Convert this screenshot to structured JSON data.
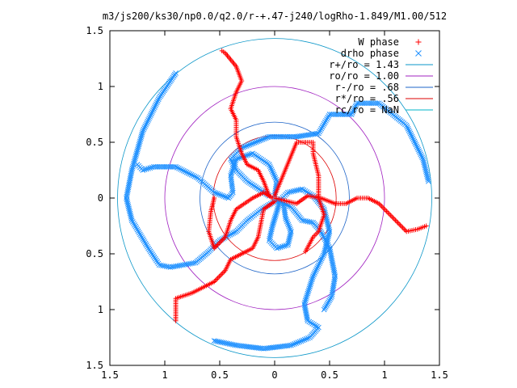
{
  "chart_data": {
    "type": "scatter",
    "title": "m3/js200/ks30/np0.0/q2.0/r-+.47-j240/logRho-1.849/M1.00/512",
    "xlabel": "",
    "ylabel": "",
    "xlim": [
      -1.5,
      1.5
    ],
    "ylim": [
      -1.5,
      1.5
    ],
    "x_tick_values": [
      -1.5,
      -1,
      -0.5,
      0,
      0.5,
      1,
      1.5
    ],
    "x_tick_labels": [
      "1.5",
      "1",
      "0.5",
      "0",
      "0.5",
      "1",
      "1.5"
    ],
    "y_tick_values": [
      1.5,
      1,
      0.5,
      0,
      -0.5,
      -1,
      -1.5
    ],
    "y_tick_labels": [
      "1.5",
      "1",
      "0.5",
      "0",
      "0.5",
      "1",
      "1.5"
    ],
    "grid": false,
    "legend_position": "top-right",
    "legend": [
      {
        "label": "W phase",
        "kind": "marker",
        "marker": "+",
        "color": "#ff0000"
      },
      {
        "label": "drho phase",
        "kind": "marker",
        "marker": "x",
        "color": "#1e90ff"
      },
      {
        "label": "r+/ro = 1.43",
        "kind": "line",
        "color": "#0a96c8"
      },
      {
        "label": "ro/ro = 1.00",
        "kind": "line",
        "color": "#a020c0"
      },
      {
        "label": "r-/ro = .68",
        "kind": "line",
        "color": "#1e64c8"
      },
      {
        "label": "r*/ro = .56",
        "kind": "line",
        "color": "#dd0000"
      },
      {
        "label": "rc/ro = NaN",
        "kind": "line",
        "color": "#00b4c8"
      }
    ],
    "circles": [
      {
        "name": "r+/ro = 1.43",
        "r": 1.43,
        "color": "#0a96c8"
      },
      {
        "name": "ro/ro = 1.00",
        "r": 1.0,
        "color": "#a020c0"
      },
      {
        "name": "r-/ro = .68",
        "r": 0.68,
        "color": "#1e64c8"
      },
      {
        "name": "r*/ro = .56",
        "r": 0.56,
        "color": "#dd0000"
      }
    ],
    "series": [
      {
        "name": "drho phase",
        "marker": "x",
        "color": "#1e90ff",
        "arms": [
          [
            [
              0.08,
              -0.05
            ],
            [
              0.1,
              -0.18
            ],
            [
              0.15,
              -0.3
            ],
            [
              0.12,
              -0.42
            ],
            [
              0.02,
              -0.45
            ],
            [
              -0.05,
              -0.38
            ],
            [
              -0.02,
              -0.25
            ],
            [
              0.02,
              -0.12
            ],
            [
              0.05,
              -0.02
            ]
          ],
          [
            [
              0.05,
              -0.02
            ],
            [
              0.12,
              0.05
            ],
            [
              0.25,
              0.08
            ],
            [
              0.35,
              0.02
            ],
            [
              0.45,
              -0.1
            ],
            [
              0.5,
              -0.3
            ],
            [
              0.45,
              -0.5
            ],
            [
              0.35,
              -0.7
            ],
            [
              0.27,
              -0.95
            ],
            [
              0.3,
              -1.1
            ],
            [
              0.4,
              -1.16
            ],
            [
              0.32,
              -1.25
            ],
            [
              0.15,
              -1.32
            ],
            [
              -0.1,
              -1.35
            ],
            [
              -0.35,
              -1.32
            ],
            [
              -0.55,
              -1.28
            ]
          ],
          [
            [
              0.02,
              -0.02
            ],
            [
              -0.12,
              -0.1
            ],
            [
              -0.25,
              -0.2
            ],
            [
              -0.35,
              -0.3
            ],
            [
              -0.5,
              -0.38
            ],
            [
              -0.6,
              -0.48
            ],
            [
              -0.72,
              -0.58
            ],
            [
              -0.95,
              -0.62
            ],
            [
              -1.05,
              -0.6
            ],
            [
              -1.15,
              -0.45
            ],
            [
              -1.3,
              -0.2
            ],
            [
              -1.35,
              0.0
            ],
            [
              -1.3,
              0.25
            ],
            [
              -1.2,
              0.6
            ],
            [
              -1.05,
              0.9
            ],
            [
              -0.9,
              1.12
            ]
          ],
          [
            [
              0.0,
              0.02
            ],
            [
              0.02,
              0.15
            ],
            [
              -0.05,
              0.3
            ],
            [
              -0.2,
              0.4
            ],
            [
              -0.35,
              0.35
            ],
            [
              -0.4,
              0.2
            ],
            [
              -0.38,
              0.05
            ],
            [
              -0.42,
              0.0
            ],
            [
              -0.55,
              0.05
            ],
            [
              -0.7,
              0.18
            ],
            [
              -0.9,
              0.28
            ],
            [
              -1.1,
              0.28
            ],
            [
              -1.2,
              0.25
            ],
            [
              -1.25,
              0.3
            ]
          ],
          [
            [
              -0.05,
              0.02
            ],
            [
              -0.25,
              0.15
            ],
            [
              -0.35,
              0.25
            ],
            [
              -0.4,
              0.35
            ],
            [
              -0.3,
              0.45
            ],
            [
              -0.05,
              0.55
            ],
            [
              0.2,
              0.55
            ],
            [
              0.4,
              0.58
            ],
            [
              0.5,
              0.75
            ],
            [
              0.6,
              0.75
            ],
            [
              0.7,
              0.75
            ],
            [
              0.75,
              0.85
            ],
            [
              0.95,
              0.85
            ],
            [
              1.2,
              0.65
            ],
            [
              1.35,
              0.35
            ],
            [
              1.4,
              0.15
            ]
          ],
          [
            [
              0.02,
              -0.02
            ],
            [
              0.15,
              -0.08
            ],
            [
              0.25,
              -0.2
            ],
            [
              0.35,
              -0.22
            ],
            [
              0.42,
              -0.3
            ],
            [
              0.5,
              -0.45
            ],
            [
              0.55,
              -0.7
            ],
            [
              0.52,
              -0.88
            ],
            [
              0.45,
              -1.0
            ]
          ]
        ]
      },
      {
        "name": "W phase",
        "marker": "+",
        "color": "#ff0000",
        "arms": [
          [
            [
              -0.05,
              0.02
            ],
            [
              -0.1,
              0.15
            ],
            [
              -0.15,
              0.25
            ],
            [
              -0.25,
              0.3
            ],
            [
              -0.3,
              0.4
            ],
            [
              -0.35,
              0.55
            ],
            [
              -0.35,
              0.7
            ],
            [
              -0.4,
              0.8
            ],
            [
              -0.35,
              0.95
            ],
            [
              -0.3,
              1.05
            ],
            [
              -0.35,
              1.18
            ],
            [
              -0.45,
              1.3
            ],
            [
              -0.48,
              1.32
            ]
          ],
          [
            [
              0.0,
              -0.03
            ],
            [
              -0.1,
              -0.1
            ],
            [
              -0.12,
              -0.2
            ],
            [
              -0.15,
              -0.35
            ],
            [
              -0.2,
              -0.45
            ],
            [
              -0.3,
              -0.5
            ],
            [
              -0.4,
              -0.55
            ],
            [
              -0.45,
              -0.65
            ],
            [
              -0.55,
              -0.75
            ],
            [
              -0.75,
              -0.85
            ],
            [
              -0.9,
              -0.9
            ],
            [
              -0.9,
              -1.1
            ]
          ],
          [
            [
              0.0,
              0.0
            ],
            [
              0.2,
              -0.05
            ],
            [
              0.3,
              0.02
            ],
            [
              0.42,
              0.0
            ],
            [
              0.55,
              -0.05
            ],
            [
              0.65,
              -0.05
            ],
            [
              0.75,
              0.0
            ],
            [
              0.85,
              0.0
            ],
            [
              0.95,
              -0.05
            ],
            [
              1.1,
              -0.2
            ],
            [
              1.2,
              -0.3
            ],
            [
              1.3,
              -0.28
            ],
            [
              1.38,
              -0.25
            ]
          ],
          [
            [
              -0.02,
              0.0
            ],
            [
              -0.1,
              0.05
            ],
            [
              -0.2,
              0.0
            ],
            [
              -0.35,
              -0.1
            ],
            [
              -0.4,
              -0.2
            ],
            [
              -0.45,
              -0.35
            ],
            [
              -0.55,
              -0.45
            ],
            [
              -0.6,
              -0.3
            ],
            [
              -0.58,
              -0.12
            ],
            [
              -0.55,
              0.0
            ]
          ],
          [
            [
              0.0,
              0.02
            ],
            [
              0.2,
              0.5
            ],
            [
              0.35,
              0.5
            ],
            [
              0.35,
              0.4
            ],
            [
              0.4,
              0.2
            ],
            [
              0.4,
              0.0
            ],
            [
              0.45,
              -0.15
            ],
            [
              0.4,
              -0.3
            ],
            [
              0.35,
              -0.35
            ],
            [
              0.28,
              -0.48
            ]
          ]
        ]
      }
    ]
  }
}
